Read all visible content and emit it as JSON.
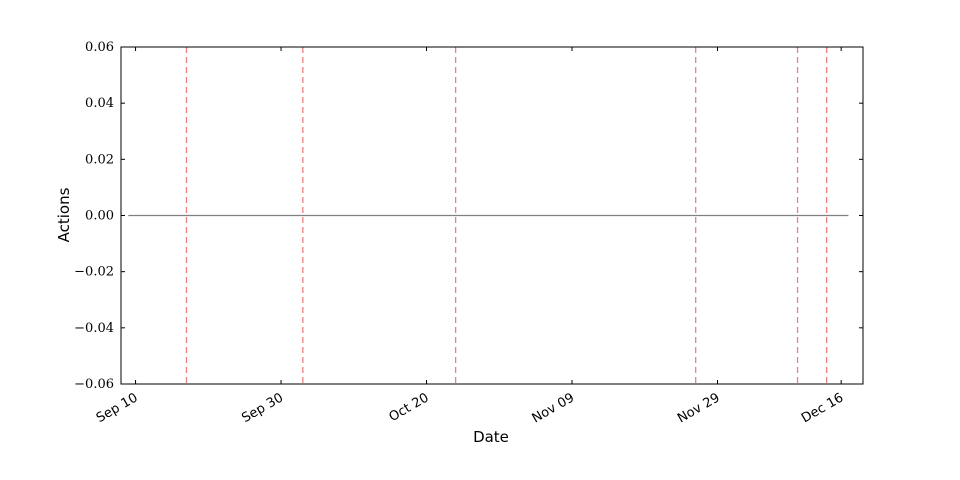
{
  "chart_data": {
    "type": "line",
    "title": "",
    "xlabel": "Date",
    "ylabel": "Actions",
    "xlim": [
      "2016-09-08",
      "2016-12-19"
    ],
    "ylim": [
      -0.06,
      0.06
    ],
    "yticks": [
      0.06,
      0.04,
      0.02,
      0.0,
      -0.02,
      -0.04,
      -0.06
    ],
    "ytick_labels": [
      "0.06",
      "0.04",
      "0.02",
      "0.00",
      "−0.02",
      "−0.04",
      "−0.06"
    ],
    "xticks": [
      "2016-09-10",
      "2016-09-30",
      "2016-10-20",
      "2016-11-09",
      "2016-11-29",
      "2016-12-16"
    ],
    "xtick_labels": [
      "Sep 10",
      "Sep 30",
      "Oct 20",
      "Nov 09",
      "Nov 29",
      "Dec 16"
    ],
    "series": [
      {
        "color": "#808080",
        "x": [
          "2016-09-09",
          "2016-12-17"
        ],
        "y": [
          0.0,
          0.0
        ]
      }
    ],
    "vlines": {
      "color": "#f08080",
      "style": "dashed",
      "x": [
        "2016-09-17",
        "2016-10-03",
        "2016-10-24",
        "2016-11-26",
        "2016-12-10",
        "2016-12-14"
      ]
    },
    "grid": false,
    "legend": "none"
  }
}
